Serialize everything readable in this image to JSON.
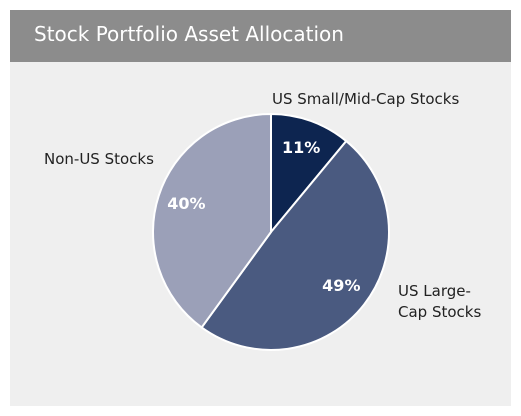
{
  "chart_data": {
    "type": "pie",
    "title": "Stock Portfolio Asset Allocation",
    "categories": [
      "US Small/Mid-Cap Stocks",
      "US Large-Cap Stocks",
      "Non-US Stocks"
    ],
    "values": [
      11,
      49,
      40
    ],
    "value_labels": [
      "11%",
      "49%",
      "40%"
    ],
    "colors": [
      "#0d2550",
      "#4a5a80",
      "#9ba0b8"
    ]
  }
}
